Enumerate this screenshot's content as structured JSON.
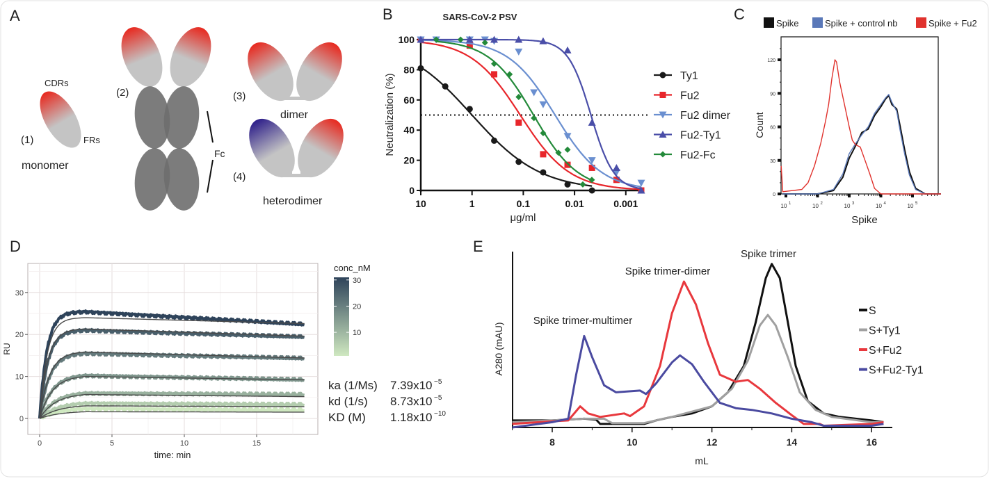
{
  "panel_labels": {
    "a": "A",
    "b": "B",
    "c": "C",
    "d": "D",
    "e": "E"
  },
  "panel_a": {
    "cdrs": "CDRs",
    "frs": "FRs",
    "n1": "(1)",
    "monomer": "monomer",
    "n2": "(2)",
    "fc": "Fc",
    "n3": "(3)",
    "dimer": "dimer",
    "n4": "(4)",
    "heterodimer": "heterodimer",
    "colors": {
      "cdr": "#e8281e",
      "framework": "#c4c4c4",
      "fc_domain": "#6e6e6e",
      "ty1_cdr": "#2e1f8a"
    }
  },
  "chart_data": [
    {
      "type": "scatter",
      "title": "SARS-CoV-2 PSV",
      "xlabel": "μg/ml",
      "ylabel": "Neutralization (%)",
      "x_scale": "log-reversed",
      "xlim": [
        10,
        0.0005
      ],
      "ylim": [
        0,
        100
      ],
      "x_ticks": [
        "10",
        "1",
        "0.1",
        "0.01",
        "0.001"
      ],
      "y_ticks": [
        "0",
        "20",
        "40",
        "60",
        "80",
        "100"
      ],
      "reference_line": {
        "y": 50,
        "style": "dotted"
      },
      "legend_position": "right",
      "series": [
        {
          "name": "Ty1",
          "color": "#1a1a1a",
          "marker": "circle",
          "x": [
            10,
            3.33,
            1.11,
            0.37,
            0.123,
            0.041,
            0.0137,
            0.00457
          ],
          "y": [
            81,
            69,
            54,
            33,
            19,
            12,
            4,
            0
          ]
        },
        {
          "name": "Fu2",
          "color": "#e8262b",
          "marker": "square",
          "x": [
            10,
            1.11,
            0.37,
            0.123,
            0.041,
            0.0137,
            0.00457,
            0.00152,
            0.0005
          ],
          "y": [
            100,
            96,
            77,
            45,
            24,
            17,
            15,
            7,
            0
          ]
        },
        {
          "name": "Fu2 dimer",
          "color": "#6a8fd0",
          "marker": "triangle-down",
          "x": [
            10,
            5,
            1.11,
            0.56,
            0.37,
            0.123,
            0.062,
            0.041,
            0.0137,
            0.00457,
            0.00152,
            0.0005
          ],
          "y": [
            100,
            100,
            100,
            100,
            99,
            92,
            65,
            57,
            36,
            20,
            12,
            5
          ]
        },
        {
          "name": "Fu2-Ty1",
          "color": "#4a4ea8",
          "marker": "triangle-up",
          "x": [
            10,
            1.11,
            0.37,
            0.123,
            0.041,
            0.0137,
            0.00457,
            0.00152,
            0.0005
          ],
          "y": [
            100,
            100,
            100,
            100,
            99,
            93,
            45,
            15,
            0
          ]
        },
        {
          "name": "Fu2-Fc",
          "color": "#238a3a",
          "marker": "diamond",
          "x": [
            5,
            1.67,
            0.56,
            0.37,
            0.185,
            0.123,
            0.062,
            0.041,
            0.0206,
            0.0137,
            0.0069,
            0.0046
          ],
          "y": [
            100,
            100,
            98,
            84,
            77,
            62,
            48,
            38,
            25,
            27,
            4,
            7
          ]
        }
      ]
    },
    {
      "type": "line",
      "xlabel": "Spike",
      "ylabel": "Count",
      "x_scale": "log",
      "x_ticks": [
        {
          "base": "10",
          "exp": "1"
        },
        {
          "base": "10",
          "exp": "2"
        },
        {
          "base": "10",
          "exp": "3"
        },
        {
          "base": "10",
          "exp": "4"
        },
        {
          "base": "10",
          "exp": "5"
        }
      ],
      "y_ticks": [
        "0",
        "30",
        "60",
        "90",
        "120"
      ],
      "ylim": [
        0,
        140
      ],
      "legend_position": "top",
      "series": [
        {
          "name": "Spike",
          "color": "#111111",
          "log10_x": [
            0.9,
            2.0,
            2.5,
            2.8,
            3.0,
            3.2,
            3.4,
            3.6,
            3.8,
            4.0,
            4.15,
            4.25,
            4.35,
            4.5,
            4.6,
            4.75,
            4.9,
            5.1,
            5.4,
            5.9
          ],
          "y": [
            0,
            0,
            3,
            15,
            32,
            43,
            55,
            58,
            70,
            78,
            85,
            88,
            80,
            76,
            62,
            40,
            20,
            5,
            0,
            0
          ]
        },
        {
          "name": "Spike + control nb",
          "color": "#5a78b8",
          "log10_x": [
            0.9,
            2.0,
            2.5,
            2.8,
            3.0,
            3.2,
            3.4,
            3.6,
            3.8,
            4.0,
            4.15,
            4.25,
            4.35,
            4.5,
            4.6,
            4.75,
            4.9,
            5.1,
            5.4,
            5.9
          ],
          "y": [
            0,
            0,
            4,
            18,
            36,
            45,
            53,
            60,
            72,
            80,
            86,
            89,
            82,
            74,
            58,
            36,
            17,
            4,
            0,
            0
          ]
        },
        {
          "name": "Spike + Fu2",
          "color": "#e0322d",
          "log10_x": [
            0.85,
            0.9,
            1.2,
            1.5,
            1.7,
            1.9,
            2.1,
            2.25,
            2.35,
            2.45,
            2.55,
            2.6,
            2.7,
            2.85,
            3.0,
            3.1,
            3.2,
            3.35,
            3.5,
            3.65,
            3.8,
            4.0,
            5.9
          ],
          "y": [
            25,
            2,
            3,
            4,
            10,
            25,
            45,
            65,
            80,
            103,
            120,
            118,
            100,
            80,
            60,
            48,
            44,
            42,
            30,
            18,
            5,
            0,
            0
          ]
        }
      ]
    },
    {
      "type": "line",
      "xlabel": "time: min",
      "ylabel": "RU",
      "xlim": [
        -1,
        19
      ],
      "ylim": [
        -4,
        37
      ],
      "x_ticks": [
        "0",
        "5",
        "10",
        "15"
      ],
      "y_ticks": [
        "0",
        "10",
        "20",
        "30"
      ],
      "grid": true,
      "legend": {
        "title": "conc_nM",
        "ticks": [
          "30",
          "20",
          "10"
        ],
        "range": [
          1,
          31
        ],
        "color_low": "#cfe8c0",
        "color_high": "#2e435a"
      },
      "injection_end_min": 3.2,
      "run_end_min": 18.3,
      "series": [
        {
          "observed_peak": 25.4,
          "observed_end": 22.4,
          "fit_peak": 24.0,
          "fit_end": 22.6
        },
        {
          "observed_peak": 21.0,
          "observed_end": 19.4,
          "fit_peak": 21.3,
          "fit_end": 19.6
        },
        {
          "observed_peak": 15.5,
          "observed_end": 14.3,
          "fit_peak": 15.8,
          "fit_end": 14.4
        },
        {
          "observed_peak": 10.2,
          "observed_end": 9.2,
          "fit_peak": 10.0,
          "fit_end": 9.2
        },
        {
          "observed_peak": 6.0,
          "observed_end": 5.7,
          "fit_peak": 5.7,
          "fit_end": 5.2
        },
        {
          "observed_peak": 3.6,
          "observed_end": 3.3,
          "fit_peak": 3.0,
          "fit_end": 2.8
        },
        {
          "observed_peak": 2.3,
          "observed_end": 2.0,
          "fit_peak": 1.6,
          "fit_end": 1.5
        }
      ],
      "constants": [
        {
          "label": "ka (1/Ms)",
          "value": "7.39x10",
          "exponent": "−5"
        },
        {
          "label": "kd (1/s)",
          "value": "8.73x10",
          "exponent": "−5"
        },
        {
          "label": "KD (M)",
          "value": "1.18x10",
          "exponent": "−10"
        }
      ]
    },
    {
      "type": "line",
      "xlabel": "mL",
      "ylabel": "A280  (mAU)",
      "xlim": [
        7,
        16.5
      ],
      "ylim": [
        0,
        100
      ],
      "x_ticks": [
        "8",
        "10",
        "12",
        "14",
        "16"
      ],
      "legend_position": "right",
      "annotations": [
        "Spike trimer",
        "Spike trimer-dimer",
        "Spike trimer-multimer"
      ],
      "series": [
        {
          "name": "S",
          "color": "#111111",
          "x": [
            7,
            8,
            8.8,
            9.1,
            9.2,
            10.3,
            10.6,
            11,
            11.5,
            12,
            12.4,
            12.8,
            13.1,
            13.35,
            13.5,
            13.7,
            13.9,
            14.1,
            14.4,
            14.8,
            15.2,
            16,
            16.3
          ],
          "y": [
            4,
            4,
            5,
            4.5,
            2,
            2,
            4,
            6,
            8,
            12,
            20,
            35,
            60,
            85,
            93,
            85,
            60,
            35,
            15,
            8,
            6,
            4,
            3
          ]
        },
        {
          "name": "S+Ty1",
          "color": "#a0a0a0",
          "x": [
            7,
            8,
            8.8,
            9.3,
            9.5,
            10.3,
            10.6,
            11,
            12,
            12.5,
            12.9,
            13.2,
            13.4,
            13.6,
            13.9,
            14.2,
            14.6,
            15,
            16,
            16.3
          ],
          "y": [
            3,
            4,
            5,
            5,
            2.5,
            2.5,
            4,
            6,
            12,
            22,
            38,
            58,
            64,
            58,
            40,
            20,
            10,
            6,
            3,
            3
          ]
        },
        {
          "name": "S+Fu2",
          "color": "#e8383d",
          "x": [
            7,
            8,
            8.4,
            8.7,
            8.9,
            9.2,
            9.8,
            9.95,
            10.3,
            10.7,
            11,
            11.3,
            11.6,
            11.9,
            12.2,
            12.6,
            12.9,
            13.2,
            13.6,
            14,
            14.3,
            14.7,
            14.8,
            16,
            16.3
          ],
          "y": [
            2,
            3.5,
            4,
            12,
            8,
            6,
            8,
            6.5,
            12,
            35,
            65,
            83,
            70,
            48,
            30,
            26,
            27,
            22,
            14,
            7,
            2,
            2,
            1,
            2,
            3
          ]
        },
        {
          "name": "S+Fu2-Ty1",
          "color": "#4a4aa0",
          "x": [
            7,
            8,
            8.4,
            8.6,
            8.8,
            9.0,
            9.3,
            9.6,
            10.2,
            10.35,
            10.6,
            11,
            11.2,
            11.5,
            11.8,
            12.2,
            12.6,
            13,
            13.5,
            14,
            14.5,
            14.8,
            16,
            16.3
          ],
          "y": [
            0,
            3,
            5,
            30,
            52,
            40,
            24,
            20,
            21,
            19,
            25,
            37,
            41,
            36,
            26,
            14,
            11,
            10,
            8,
            5,
            3,
            1,
            1,
            2
          ]
        }
      ]
    }
  ]
}
